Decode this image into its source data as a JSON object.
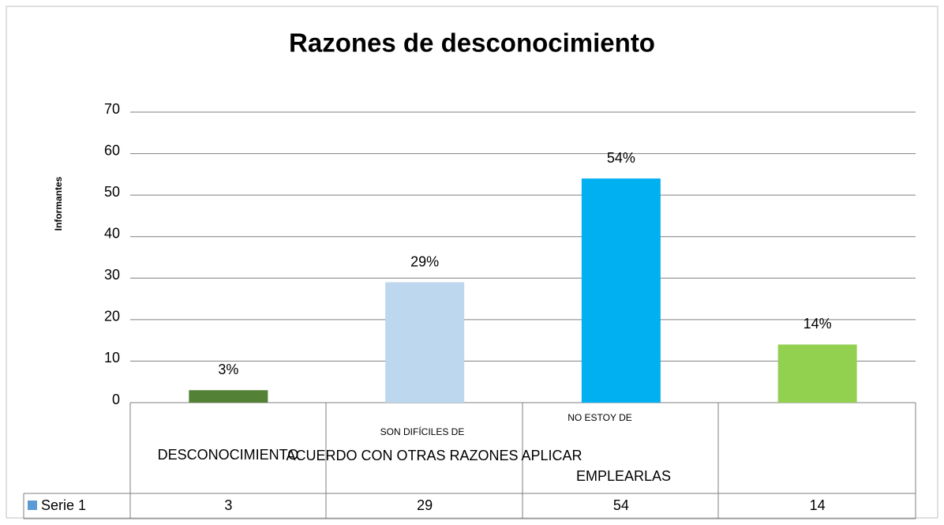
{
  "chart_data": {
    "type": "bar",
    "title": "Razones de desconocimiento",
    "y_label": "Informantes",
    "categories": [
      "DESCONOCIMIENTO",
      "SON DIFÍCILES DE",
      "NO ESTOY DE",
      null
    ],
    "annotations": [
      "ACUERDO CON OTRAS RAZONES APLICAR",
      "EMPLEARLAS"
    ],
    "series": [
      {
        "name": "Serie 1",
        "color": "#5b9bd5",
        "bar_colors": [
          "#538135",
          "#bdd7ee",
          "#00b0f0",
          "#92d050"
        ],
        "values": [
          3,
          29,
          54,
          14
        ],
        "value_labels": [
          "3%",
          "29%",
          "54%",
          "14%"
        ]
      }
    ],
    "ylim": [
      0,
      70
    ],
    "yticks": [
      0,
      10,
      20,
      30,
      40,
      50,
      60,
      70
    ],
    "grid": true
  }
}
